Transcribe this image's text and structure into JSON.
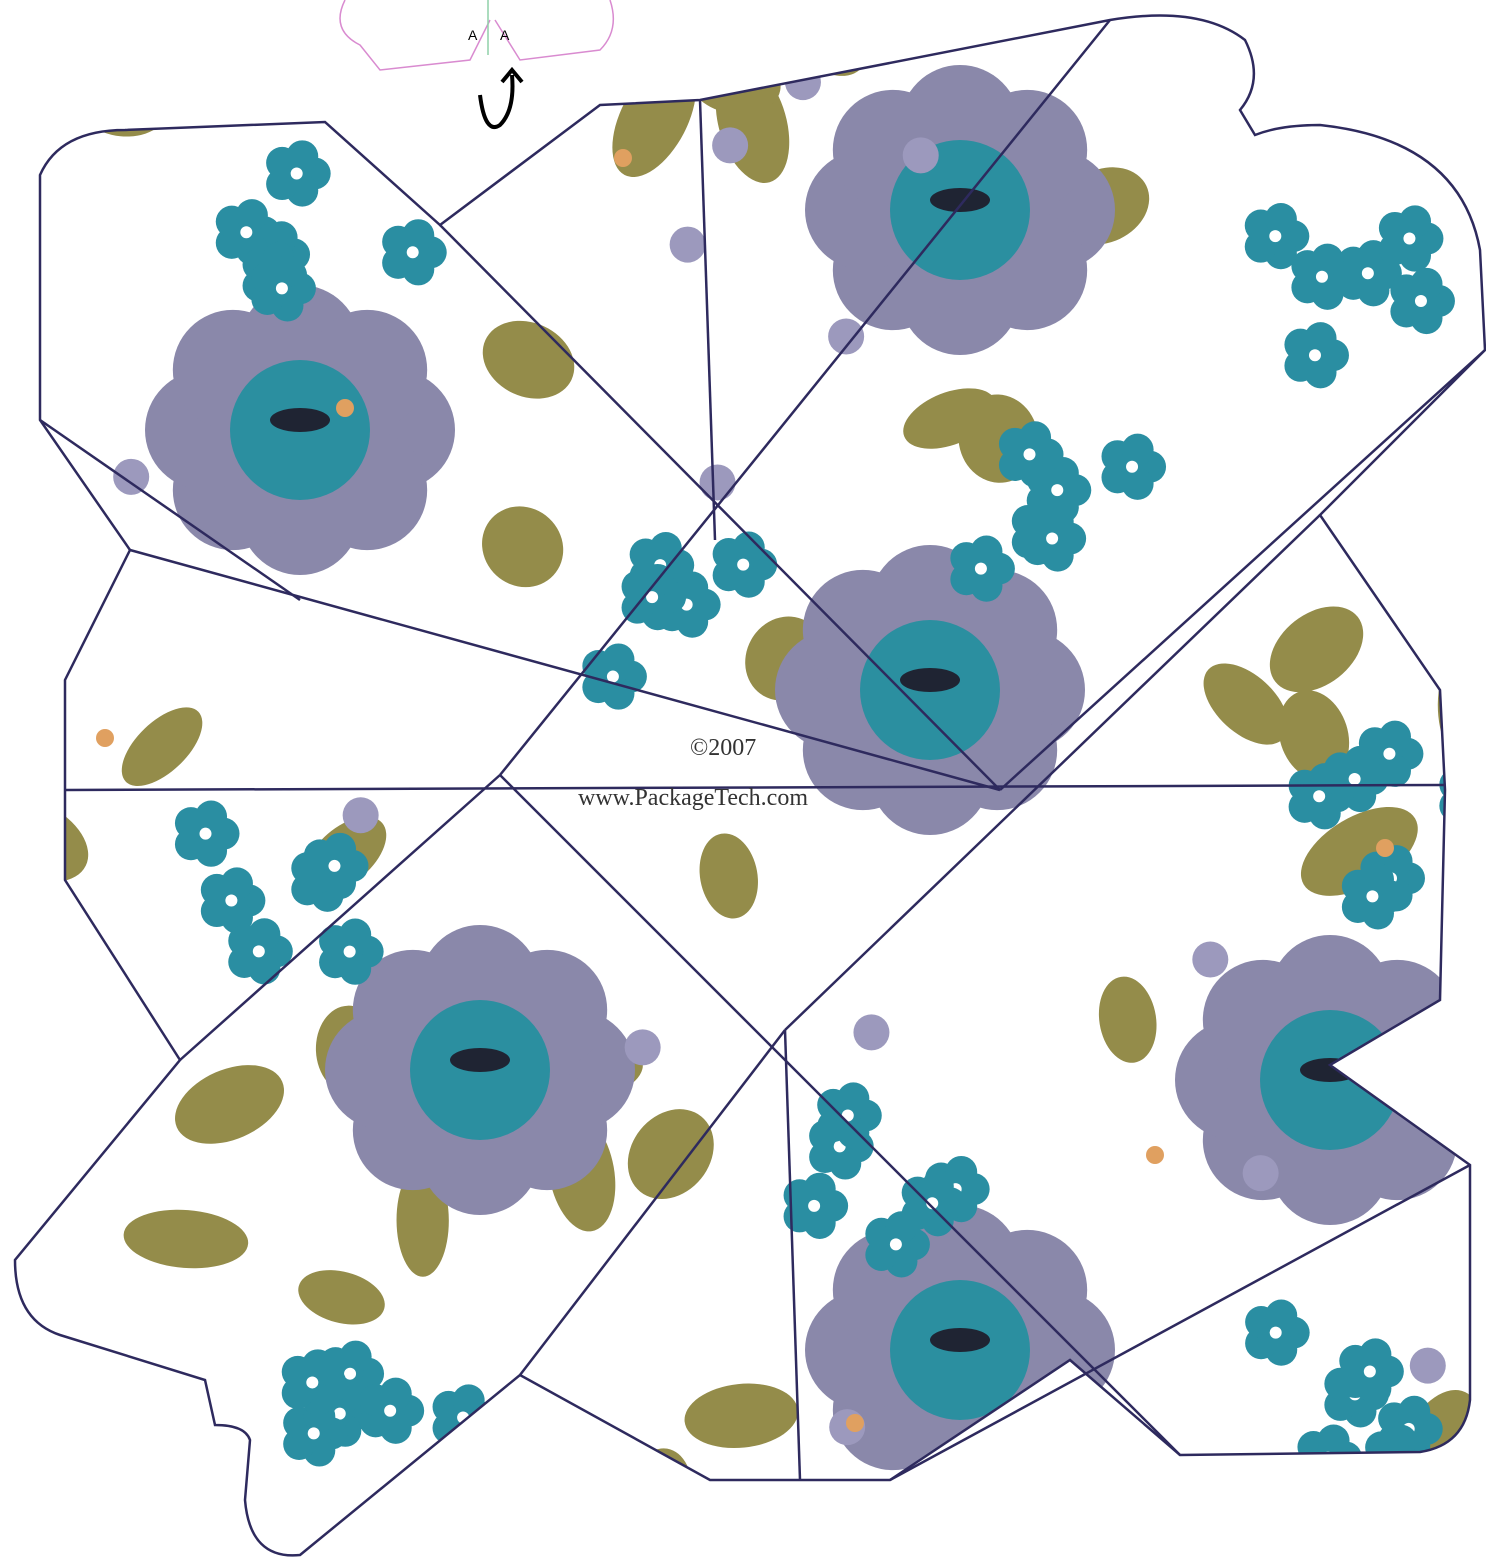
{
  "fold_diagram": {
    "labels": [
      "A",
      "A"
    ]
  },
  "watermark": {
    "copyright": "©2007",
    "url": "www.PackageTech.com"
  }
}
